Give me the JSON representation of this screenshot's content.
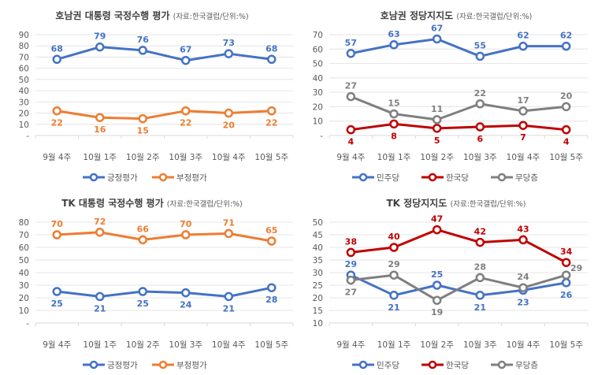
{
  "chart_data": [
    {
      "type": "line",
      "title": "호남권 대통령 국정수행 평가",
      "subtitle": "(자료:한국갤럽/단위:%)",
      "categories": [
        "9월 4주",
        "10월 1주",
        "10월 2주",
        "10월 3주",
        "10월 4주",
        "10월 5주"
      ],
      "ylim": [
        0,
        90
      ],
      "yticks": [
        0,
        10,
        20,
        30,
        40,
        50,
        60,
        70,
        80,
        90
      ],
      "ytick_labels": [
        "-",
        "10",
        "20",
        "30",
        "40",
        "50",
        "60",
        "70",
        "80",
        "90"
      ],
      "grid": true,
      "legend": "bottom",
      "series": [
        {
          "name": "긍정평가",
          "color": "#4472C4",
          "values": [
            68,
            79,
            76,
            67,
            73,
            68
          ]
        },
        {
          "name": "부정평가",
          "color": "#ED7D31",
          "values": [
            22,
            16,
            15,
            22,
            20,
            22
          ]
        }
      ]
    },
    {
      "type": "line",
      "title": "호남권 정당지지도",
      "subtitle": "(자료:한국갤럽/단위:%)",
      "categories": [
        "9월 4주",
        "10월 1주",
        "10월 2주",
        "10월 3주",
        "10월 4주",
        "10월 5주"
      ],
      "ylim": [
        0,
        70
      ],
      "yticks": [
        0,
        10,
        20,
        30,
        40,
        50,
        60,
        70
      ],
      "ytick_labels": [
        "-",
        "10",
        "20",
        "30",
        "40",
        "50",
        "60",
        "70"
      ],
      "grid": true,
      "legend": "bottom",
      "series": [
        {
          "name": "민주당",
          "color": "#4472C4",
          "values": [
            57,
            63,
            67,
            55,
            62,
            62
          ]
        },
        {
          "name": "한국당",
          "color": "#C00000",
          "values": [
            4,
            8,
            5,
            6,
            7,
            4
          ]
        },
        {
          "name": "무당층",
          "color": "#7F7F7F",
          "values": [
            27,
            15,
            11,
            22,
            17,
            20
          ]
        }
      ]
    },
    {
      "type": "line",
      "title": "TK 대통령 국정수행 평가",
      "subtitle": "(자료:한국갤럽/단위:%)",
      "categories": [
        "9월 4주",
        "10월 1주",
        "10월 2주",
        "10월 3주",
        "10월 4주",
        "10월 5주"
      ],
      "ylim": [
        0,
        80
      ],
      "yticks": [
        0,
        10,
        20,
        30,
        40,
        50,
        60,
        70,
        80
      ],
      "ytick_labels": [
        "-",
        "10",
        "20",
        "30",
        "40",
        "50",
        "60",
        "70",
        "80"
      ],
      "grid": true,
      "legend": "bottom",
      "series": [
        {
          "name": "긍정평가",
          "color": "#4472C4",
          "values": [
            25,
            21,
            25,
            24,
            21,
            28
          ]
        },
        {
          "name": "부정평가",
          "color": "#ED7D31",
          "values": [
            70,
            72,
            66,
            70,
            71,
            65
          ]
        }
      ]
    },
    {
      "type": "line",
      "title": "TK 정당지지도",
      "subtitle": "(자료:한국갤럽/단위:%)",
      "categories": [
        "9월 4주",
        "10월 1주",
        "10월 2주",
        "10월 3주",
        "10월 4주",
        "10월 5주"
      ],
      "ylim": [
        10,
        50
      ],
      "yticks": [
        10,
        15,
        20,
        25,
        30,
        35,
        40,
        45,
        50
      ],
      "ytick_labels": [
        "10",
        "15",
        "20",
        "25",
        "30",
        "35",
        "40",
        "45",
        "50"
      ],
      "grid": true,
      "legend": "bottom",
      "series": [
        {
          "name": "민주당",
          "color": "#4472C4",
          "values": [
            29,
            21,
            25,
            21,
            23,
            26
          ]
        },
        {
          "name": "한국당",
          "color": "#C00000",
          "values": [
            38,
            40,
            47,
            42,
            43,
            34
          ]
        },
        {
          "name": "무당층",
          "color": "#7F7F7F",
          "values": [
            27,
            29,
            19,
            28,
            24,
            29
          ]
        }
      ]
    }
  ]
}
